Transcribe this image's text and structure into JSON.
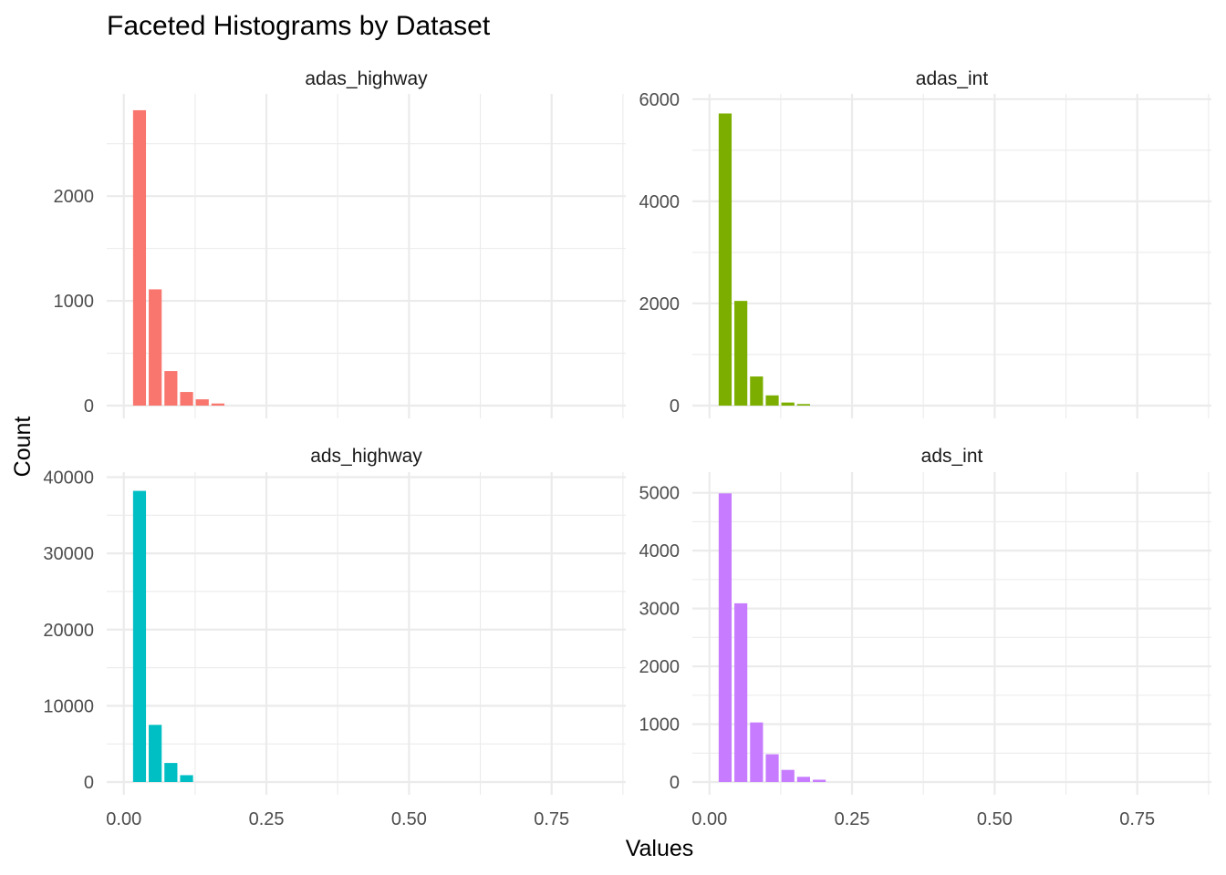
{
  "chart_data": {
    "type": "bar",
    "title": "Faceted Histograms by Dataset",
    "xlabel": "Values",
    "ylabel": "Count",
    "xlim": [
      -0.03,
      0.88
    ],
    "x_ticks": [
      0.0,
      0.25,
      0.5,
      0.75
    ],
    "x_tick_labels": [
      "0.00",
      "0.25",
      "0.50",
      "0.75"
    ],
    "bin_width": 0.0275,
    "bin_centers": [
      0.0275,
      0.055,
      0.0825,
      0.11,
      0.1375,
      0.165,
      0.1925
    ],
    "grid": true,
    "legend": "none",
    "panels": [
      {
        "name": "adas_highway",
        "color": "#F8766D",
        "ylim": [
          0,
          2950
        ],
        "y_ticks": [
          0,
          1000,
          2000
        ],
        "y_tick_labels": [
          "0",
          "1000",
          "2000"
        ],
        "values": [
          2820,
          1110,
          330,
          130,
          60,
          20,
          0
        ]
      },
      {
        "name": "adas_int",
        "color": "#7CAE00",
        "ylim": [
          0,
          6050
        ],
        "y_ticks": [
          0,
          2000,
          4000,
          6000
        ],
        "y_tick_labels": [
          "0",
          "2000",
          "4000",
          "6000"
        ],
        "values": [
          5720,
          2050,
          570,
          200,
          60,
          30,
          0
        ]
      },
      {
        "name": "ads_highway",
        "color": "#00BFC4",
        "ylim": [
          0,
          40300
        ],
        "y_ticks": [
          0,
          10000,
          20000,
          30000,
          40000
        ],
        "y_tick_labels": [
          "0",
          "10000",
          "20000",
          "30000",
          "40000"
        ],
        "values": [
          38200,
          7500,
          2500,
          900,
          0,
          0,
          0
        ]
      },
      {
        "name": "ads_int",
        "color": "#C77CFF",
        "ylim": [
          0,
          5310
        ],
        "y_ticks": [
          0,
          1000,
          2000,
          3000,
          4000,
          5000
        ],
        "y_tick_labels": [
          "0",
          "1000",
          "2000",
          "3000",
          "4000",
          "5000"
        ],
        "values": [
          4990,
          3090,
          1030,
          480,
          210,
          90,
          40
        ]
      }
    ]
  }
}
